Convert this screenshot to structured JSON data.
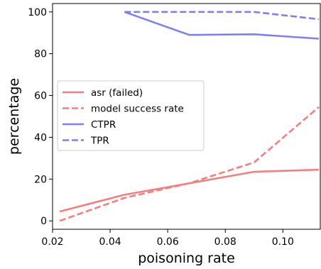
{
  "chart_data": {
    "type": "line",
    "xlabel": "poisoning rate",
    "ylabel": "percentage",
    "xlim": [
      0.02,
      0.113
    ],
    "ylim": [
      -4,
      104
    ],
    "xticks": [
      0.02,
      0.04,
      0.06,
      0.08,
      0.1
    ],
    "xtick_labels": [
      "0.02",
      "0.04",
      "0.06",
      "0.08",
      "0.10"
    ],
    "yticks": [
      0,
      20,
      40,
      60,
      80,
      100
    ],
    "ytick_labels": [
      "0",
      "20",
      "40",
      "60",
      "80",
      "100"
    ],
    "grid": false,
    "legend_position": "center-left",
    "series": [
      {
        "name": "asr (failed)",
        "color": "#f47f7f",
        "style": "solid",
        "x": [
          0.0225,
          0.045,
          0.0675,
          0.09,
          0.1125
        ],
        "y": [
          4.5,
          12.5,
          18.0,
          23.5,
          24.5
        ]
      },
      {
        "name": "model success rate",
        "color": "#f47f7f",
        "style": "dashed",
        "x": [
          0.0225,
          0.045,
          0.0675,
          0.09,
          0.1125
        ],
        "y": [
          0.0,
          11.0,
          18.0,
          28.0,
          54.5
        ]
      },
      {
        "name": "CTPR",
        "color": "#7f7ff4",
        "style": "solid",
        "x": [
          0.045,
          0.0675,
          0.09,
          0.1125
        ],
        "y": [
          100.0,
          89.0,
          89.3,
          87.2
        ]
      },
      {
        "name": "TPR",
        "color": "#7f7ff4",
        "style": "dashed",
        "x": [
          0.045,
          0.0675,
          0.09,
          0.1125
        ],
        "y": [
          100.0,
          100.0,
          100.0,
          96.5
        ]
      }
    ]
  }
}
